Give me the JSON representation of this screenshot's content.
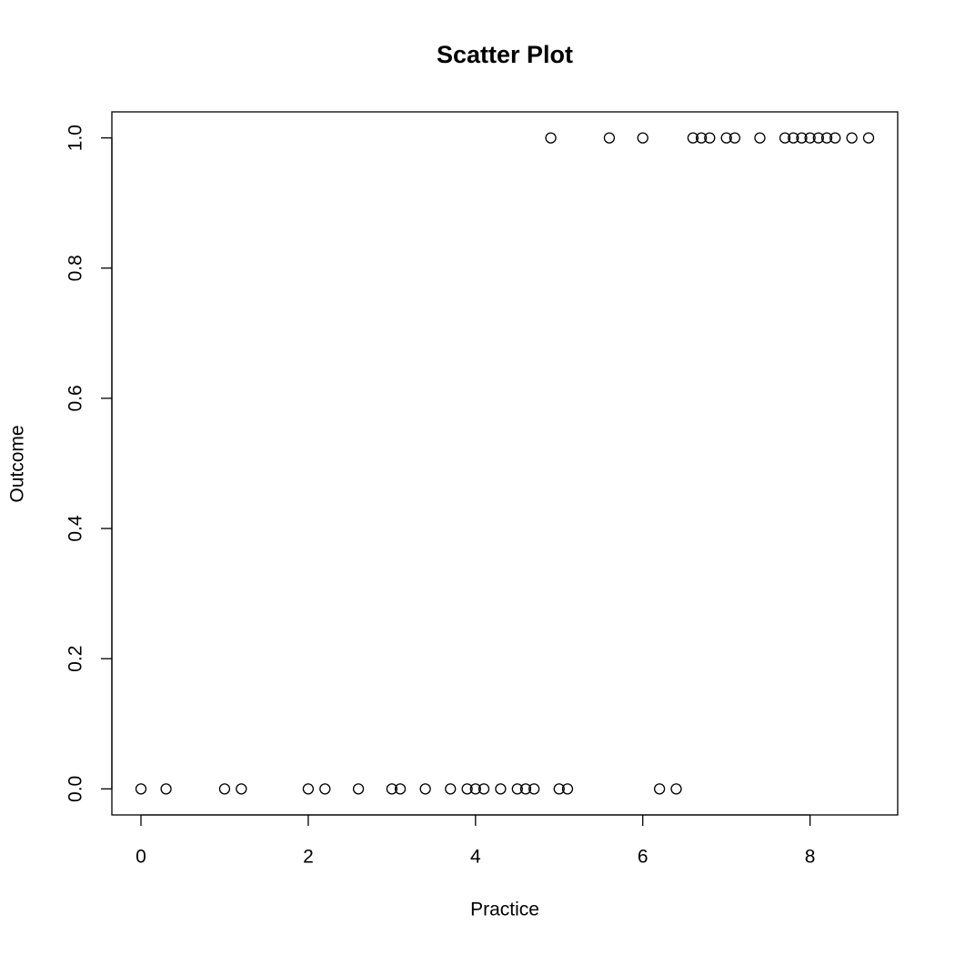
{
  "chart_data": {
    "type": "scatter",
    "title": "Scatter Plot",
    "x_label": "Practice",
    "y_label": "Outcome",
    "x": [
      0,
      0.3,
      1.0,
      1.2,
      2.0,
      2.2,
      2.6,
      3.0,
      3.1,
      3.4,
      3.7,
      3.9,
      4.0,
      4.1,
      4.3,
      4.5,
      4.6,
      4.7,
      4.9,
      5.0,
      5.1,
      5.6,
      6.0,
      6.2,
      6.4,
      6.6,
      6.7,
      6.8,
      7.0,
      7.1,
      7.4,
      7.7,
      7.8,
      7.9,
      8.0,
      8.1,
      8.2,
      8.3,
      8.5,
      8.7
    ],
    "y": [
      0,
      0,
      0,
      0,
      0,
      0,
      0,
      0,
      0,
      0,
      0,
      0,
      0,
      0,
      0,
      0,
      0,
      0,
      1,
      0,
      0,
      1,
      1,
      0,
      0,
      1,
      1,
      1,
      1,
      1,
      1,
      1,
      1,
      1,
      1,
      1,
      1,
      1,
      1,
      1
    ],
    "color": "#000000",
    "xlim": [
      -0.348,
      9.048
    ],
    "ylim": [
      -0.04,
      1.04
    ],
    "xticks": [
      0,
      2,
      4,
      6,
      8
    ],
    "yticks": [
      {
        "value": 0,
        "label": "0.0"
      },
      0.2,
      0.4,
      0.6,
      0.8,
      {
        "value": 1,
        "label": "1.0"
      }
    ],
    "grid": false
  }
}
